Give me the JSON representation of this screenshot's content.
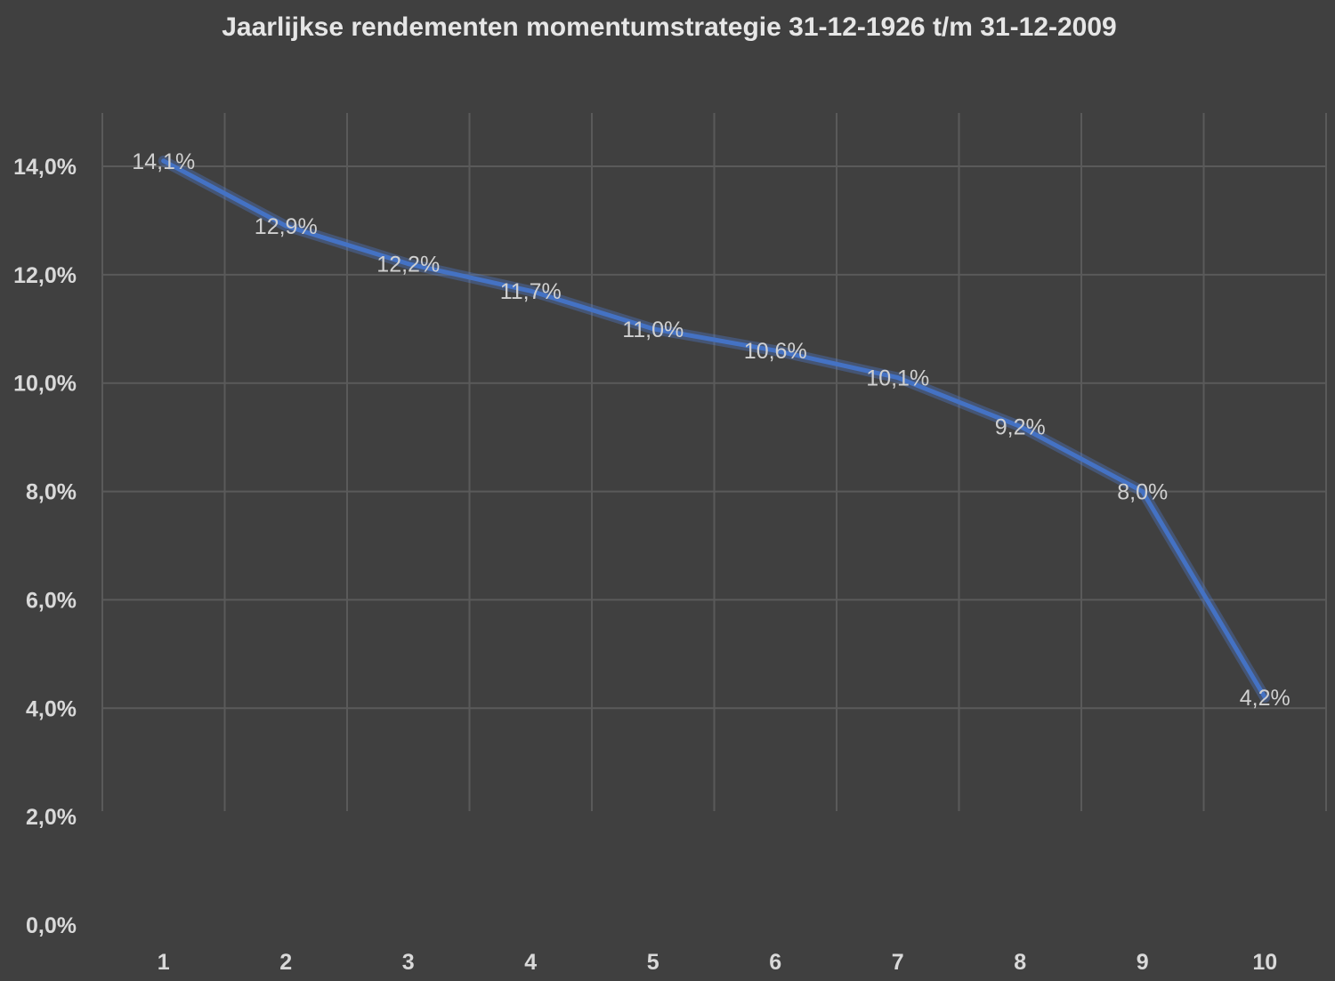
{
  "chart_data": {
    "type": "line",
    "title": "Jaarlijkse rendementen momentumstrategie 31-12-1926 t/m 31-12-2009",
    "xlabel": "",
    "ylabel": "",
    "categories": [
      "1",
      "2",
      "3",
      "4",
      "5",
      "6",
      "7",
      "8",
      "9",
      "10"
    ],
    "values": [
      14.1,
      12.9,
      12.2,
      11.7,
      11.0,
      10.6,
      10.1,
      9.2,
      8.0,
      4.2
    ],
    "data_labels": [
      "14,1%",
      "12,9%",
      "12,2%",
      "11,7%",
      "11,0%",
      "10,6%",
      "10,1%",
      "9,2%",
      "8,0%",
      "4,2%"
    ],
    "ylim": [
      0,
      14
    ],
    "yticks": [
      0,
      2,
      4,
      6,
      8,
      10,
      12,
      14
    ],
    "ytick_labels": [
      "0,0%",
      "2,0%",
      "4,0%",
      "6,0%",
      "8,0%",
      "10,0%",
      "12,0%",
      "14,0%"
    ],
    "grid": true,
    "legend": "none",
    "colors": {
      "background": "#404040",
      "series": "#4472c4",
      "grid": "#5a5a5a",
      "text": "#d9d9d9"
    }
  }
}
